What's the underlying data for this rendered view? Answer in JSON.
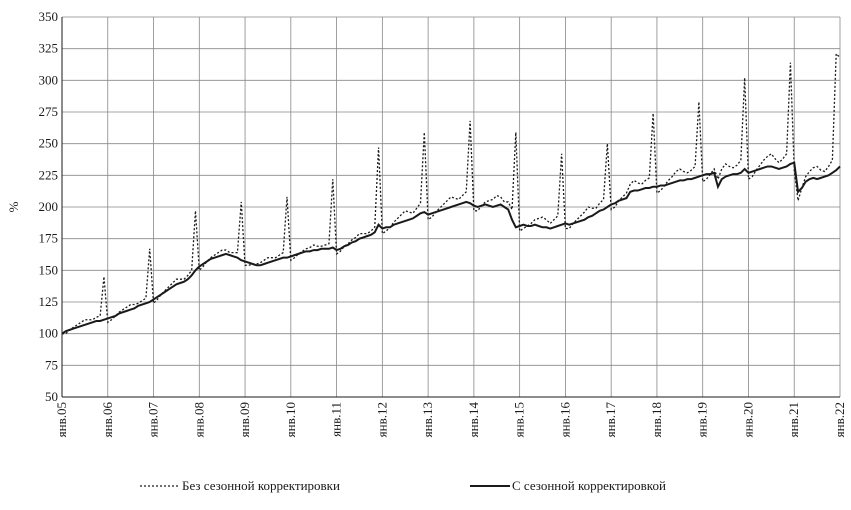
{
  "chart_data": {
    "type": "line",
    "ylabel": "%",
    "categories": [
      "янв.05",
      null,
      null,
      null,
      null,
      null,
      null,
      null,
      null,
      null,
      null,
      null,
      "янв.06",
      null,
      null,
      null,
      null,
      null,
      null,
      null,
      null,
      null,
      null,
      null,
      "янв.07",
      null,
      null,
      null,
      null,
      null,
      null,
      null,
      null,
      null,
      null,
      null,
      "янв.08",
      null,
      null,
      null,
      null,
      null,
      null,
      null,
      null,
      null,
      null,
      null,
      "янв.09",
      null,
      null,
      null,
      null,
      null,
      null,
      null,
      null,
      null,
      null,
      null,
      "янв.10",
      null,
      null,
      null,
      null,
      null,
      null,
      null,
      null,
      null,
      null,
      null,
      "янв.11",
      null,
      null,
      null,
      null,
      null,
      null,
      null,
      null,
      null,
      null,
      null,
      "янв.12",
      null,
      null,
      null,
      null,
      null,
      null,
      null,
      null,
      null,
      null,
      null,
      "янв.13",
      null,
      null,
      null,
      null,
      null,
      null,
      null,
      null,
      null,
      null,
      null,
      "янв.14",
      null,
      null,
      null,
      null,
      null,
      null,
      null,
      null,
      null,
      null,
      null,
      "янв.15",
      null,
      null,
      null,
      null,
      null,
      null,
      null,
      null,
      null,
      null,
      null,
      "янв.16",
      null,
      null,
      null,
      null,
      null,
      null,
      null,
      null,
      null,
      null,
      null,
      "янв.17",
      null,
      null,
      null,
      null,
      null,
      null,
      null,
      null,
      null,
      null,
      null,
      "янв.18",
      null,
      null,
      null,
      null,
      null,
      null,
      null,
      null,
      null,
      null,
      null,
      "янв.19",
      null,
      null,
      null,
      null,
      null,
      null,
      null,
      null,
      null,
      null,
      null,
      "янв.20",
      null,
      null,
      null,
      null,
      null,
      null,
      null,
      null,
      null,
      null,
      null,
      "янв.21",
      null,
      null,
      null,
      null,
      null,
      null,
      null,
      null,
      null,
      null,
      null,
      "янв.22"
    ],
    "series": [
      {
        "name": "Без сезонной корректировки",
        "color": "#1a1a1a",
        "style": "dotted",
        "values": [
          100,
          100,
          103,
          105,
          107,
          109,
          111,
          111,
          111,
          113,
          114,
          145,
          109,
          111,
          114,
          117,
          119,
          121,
          123,
          123,
          124,
          126,
          128,
          167,
          124,
          127,
          131,
          134,
          137,
          140,
          143,
          143,
          143,
          146,
          150,
          197,
          150,
          153,
          157,
          160,
          162,
          164,
          166,
          166,
          164,
          164,
          164,
          204,
          154,
          154,
          155,
          155,
          156,
          158,
          160,
          160,
          160,
          162,
          164,
          208,
          158,
          160,
          163,
          165,
          167,
          168,
          170,
          169,
          169,
          170,
          171,
          222,
          163,
          165,
          169,
          171,
          174,
          176,
          179,
          179,
          179,
          181,
          184,
          247,
          179,
          181,
          184,
          188,
          191,
          194,
          197,
          196,
          195,
          199,
          203,
          259,
          190,
          192,
          196,
          199,
          202,
          205,
          208,
          207,
          206,
          209,
          212,
          268,
          197,
          197,
          201,
          204,
          205,
          206,
          209,
          208,
          204,
          204,
          198,
          259,
          181,
          183,
          185,
          187,
          190,
          191,
          192,
          190,
          187,
          190,
          193,
          242,
          183,
          183,
          187,
          190,
          193,
          196,
          200,
          199,
          199,
          203,
          206,
          250,
          198,
          200,
          205,
          208,
          211,
          218,
          221,
          219,
          218,
          221,
          223,
          274,
          211,
          213,
          217,
          221,
          224,
          228,
          230,
          228,
          227,
          229,
          232,
          283,
          220,
          222,
          226,
          230,
          222,
          230,
          234,
          232,
          231,
          233,
          237,
          302,
          222,
          224,
          229,
          233,
          237,
          240,
          242,
          238,
          235,
          238,
          242,
          314,
          229,
          205,
          215,
          224,
          228,
          231,
          232,
          229,
          228,
          232,
          237,
          321,
          318
        ]
      },
      {
        "name": "С сезонной корректировкой",
        "color": "#1a1a1a",
        "style": "solid",
        "values": [
          100,
          102,
          103,
          104,
          105,
          106,
          107,
          108,
          109,
          110,
          110,
          111,
          112,
          113,
          114,
          116,
          117,
          118,
          119,
          120,
          122,
          123,
          124,
          125,
          127,
          129,
          131,
          133,
          135,
          137,
          139,
          140,
          141,
          143,
          146,
          150,
          153,
          155,
          157,
          159,
          160,
          161,
          162,
          163,
          162,
          161,
          160,
          158,
          157,
          156,
          155,
          154,
          154,
          155,
          156,
          157,
          158,
          159,
          160,
          160,
          161,
          162,
          163,
          164,
          165,
          165,
          166,
          166,
          167,
          167,
          167,
          168,
          166,
          167,
          169,
          170,
          172,
          173,
          175,
          176,
          177,
          178,
          180,
          186,
          183,
          184,
          184,
          186,
          187,
          188,
          189,
          190,
          191,
          193,
          195,
          196,
          194,
          195,
          196,
          197,
          198,
          199,
          200,
          201,
          202,
          203,
          204,
          203,
          201,
          200,
          201,
          202,
          201,
          200,
          201,
          202,
          200,
          198,
          190,
          184,
          185,
          186,
          185,
          185,
          186,
          185,
          184,
          184,
          183,
          184,
          185,
          186,
          187,
          186,
          187,
          188,
          189,
          190,
          192,
          193,
          195,
          197,
          198,
          200,
          202,
          203,
          205,
          206,
          207,
          212,
          213,
          213,
          214,
          215,
          215,
          216,
          216,
          217,
          217,
          218,
          219,
          220,
          221,
          221,
          222,
          222,
          223,
          224,
          225,
          226,
          226,
          227,
          216,
          222,
          224,
          225,
          226,
          226,
          227,
          230,
          227,
          228,
          229,
          230,
          231,
          232,
          232,
          231,
          230,
          231,
          232,
          234,
          235,
          212,
          215,
          220,
          222,
          223,
          222,
          223,
          224,
          225,
          227,
          229,
          232
        ]
      }
    ],
    "ylim": [
      50,
      350
    ],
    "yticks": [
      50,
      75,
      100,
      125,
      150,
      175,
      200,
      225,
      250,
      275,
      300,
      325,
      350
    ],
    "grid": true
  }
}
